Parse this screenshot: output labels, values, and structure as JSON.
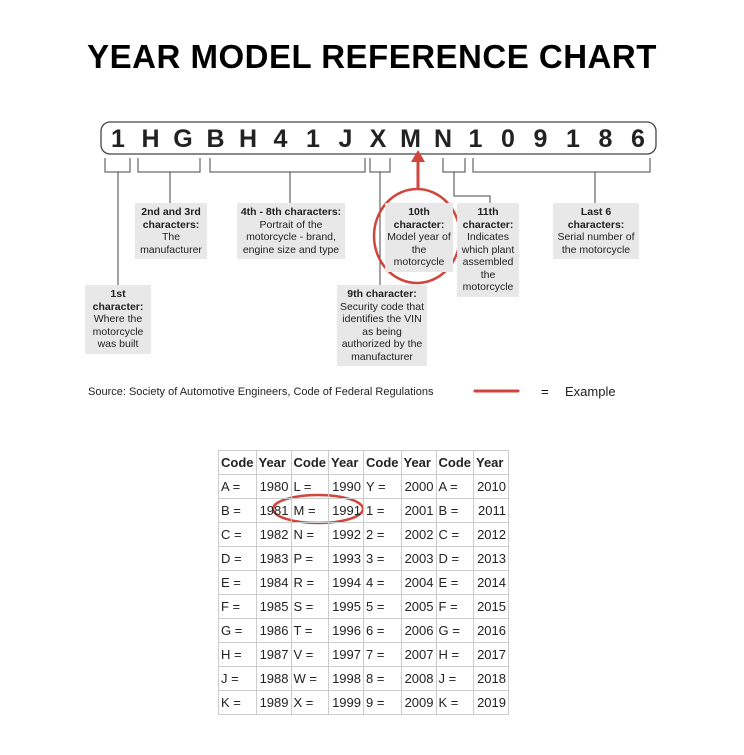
{
  "title": "YEAR MODEL REFERENCE CHART",
  "vin": [
    "1",
    "H",
    "G",
    "B",
    "H",
    "4",
    "1",
    "J",
    "X",
    "M",
    "N",
    "1",
    "0",
    "9",
    "1",
    "8",
    "6"
  ],
  "callouts": [
    {
      "heading": "1st character:",
      "body": "Where the motorcycle was built"
    },
    {
      "heading": "2nd and 3rd characters:",
      "body": "The manufacturer"
    },
    {
      "heading": "4th - 8th characters:",
      "body": "Portrait of the motorcycle - brand, engine size and type"
    },
    {
      "heading": "9th character:",
      "body": "Security code that identifies the VIN as being authorized by the manufacturer"
    },
    {
      "heading": "10th character:",
      "body": "Model year of the motorcycle"
    },
    {
      "heading": "11th character:",
      "body": "Indicates which plant assembled the motorcycle"
    },
    {
      "heading": "Last 6 characters:",
      "body": "Serial number of the motorcycle"
    }
  ],
  "source": "Source:  Society of Automotive Engineers, Code of Federal Regulations",
  "legend": {
    "equals": "=",
    "label": "Example"
  },
  "table": {
    "header": [
      "Code",
      "Year",
      "Code",
      "Year",
      "Code",
      "Year",
      "Code",
      "Year"
    ],
    "rows": [
      [
        "A =",
        "1980",
        "L =",
        "1990",
        "Y =",
        "2000",
        "A =",
        "2010"
      ],
      [
        "B =",
        "1981",
        "M =",
        "1991",
        "1 =",
        "2001",
        "B =",
        "2011"
      ],
      [
        "C =",
        "1982",
        "N =",
        "1992",
        "2 =",
        "2002",
        "C =",
        "2012"
      ],
      [
        "D =",
        "1983",
        "P =",
        "1993",
        "3 =",
        "2003",
        "D =",
        "2013"
      ],
      [
        "E =",
        "1984",
        "R =",
        "1994",
        "4 =",
        "2004",
        "E =",
        "2014"
      ],
      [
        "F =",
        "1985",
        "S =",
        "1995",
        "5 =",
        "2005",
        "F =",
        "2015"
      ],
      [
        "G =",
        "1986",
        "T =",
        "1996",
        "6 =",
        "2006",
        "G =",
        "2016"
      ],
      [
        "H =",
        "1987",
        "V =",
        "1997",
        "7 =",
        "2007",
        "H =",
        "2017"
      ],
      [
        "J =",
        "1988",
        "W =",
        "1998",
        "8 =",
        "2008",
        "J =",
        "2018"
      ],
      [
        "K =",
        "1989",
        "X =",
        "1999",
        "9 =",
        "2009",
        "K =",
        "2019"
      ]
    ]
  }
}
